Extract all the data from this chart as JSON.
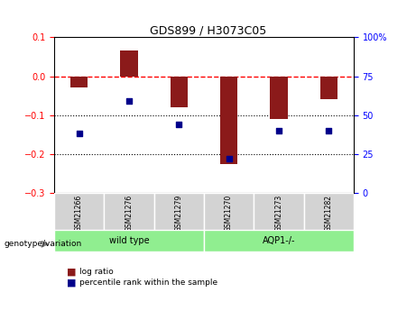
{
  "title": "GDS899 / H3073C05",
  "samples": [
    "GSM21266",
    "GSM21276",
    "GSM21279",
    "GSM21270",
    "GSM21273",
    "GSM21282"
  ],
  "log_ratio": [
    -0.03,
    0.065,
    -0.08,
    -0.225,
    -0.11,
    -0.06
  ],
  "percentile_rank": [
    0.38,
    0.59,
    0.44,
    0.22,
    0.4,
    0.4
  ],
  "bar_color": "#8B1A1A",
  "dot_color": "#00008B",
  "groups": [
    {
      "label": "wild type",
      "samples": [
        "GSM21266",
        "GSM21276",
        "GSM21279"
      ],
      "color": "#90EE90"
    },
    {
      "label": "AQP1-/-",
      "samples": [
        "GSM21270",
        "GSM21273",
        "GSM21282"
      ],
      "color": "#90EE90"
    }
  ],
  "ylim_left": [
    -0.3,
    0.1
  ],
  "ylim_right": [
    0,
    100
  ],
  "yticks_left": [
    -0.3,
    -0.2,
    -0.1,
    0.0,
    0.1
  ],
  "yticks_right": [
    0,
    25,
    50,
    75,
    100
  ],
  "hline_y": 0.0,
  "dotted_lines": [
    -0.1,
    -0.2
  ],
  "legend_labels": [
    "log ratio",
    "percentile rank within the sample"
  ],
  "legend_colors": [
    "#8B1A1A",
    "#00008B"
  ]
}
